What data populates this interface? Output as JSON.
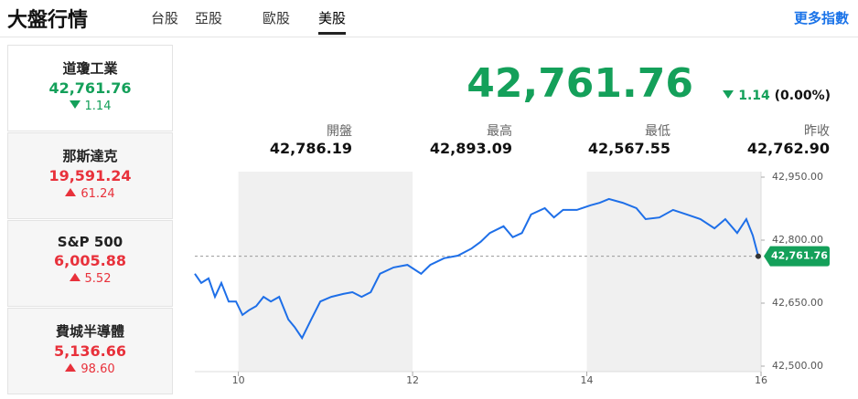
{
  "header": {
    "title": "大盤行情",
    "tabs": [
      "台股",
      "亞股",
      "歐股",
      "美股"
    ],
    "active_tab": 3,
    "more_link": "更多指數"
  },
  "indices": [
    {
      "name": "道瓊工業",
      "value": "42,761.76",
      "change": "1.14",
      "direction": "down"
    },
    {
      "name": "那斯達克",
      "value": "19,591.24",
      "change": "61.24",
      "direction": "up"
    },
    {
      "name": "S&P 500",
      "value": "6,005.88",
      "change": "5.52",
      "direction": "up"
    },
    {
      "name": "費城半導體",
      "value": "5,136.66",
      "change": "98.60",
      "direction": "up"
    }
  ],
  "selected_index": 0,
  "quote": {
    "value": "42,761.76",
    "change": "1.14",
    "change_percent": "(0.00%)",
    "direction": "down"
  },
  "stats": [
    {
      "label": "開盤",
      "value": "42,786.19"
    },
    {
      "label": "最高",
      "value": "42,893.09"
    },
    {
      "label": "最低",
      "value": "42,567.55"
    },
    {
      "label": "昨收",
      "value": "42,762.90"
    }
  ],
  "chart_data": {
    "type": "line",
    "x": [
      9.5,
      9.574,
      9.658,
      9.731,
      9.805,
      9.889,
      9.973,
      10.047,
      10.121,
      10.205,
      10.289,
      10.373,
      10.468,
      10.573,
      10.646,
      10.731,
      10.836,
      10.941,
      11.067,
      11.204,
      11.309,
      11.414,
      11.519,
      11.625,
      11.782,
      11.94,
      12.098,
      12.203,
      12.361,
      12.519,
      12.676,
      12.781,
      12.887,
      13.044,
      13.15,
      13.255,
      13.36,
      13.518,
      13.623,
      13.728,
      13.886,
      14.044,
      14.149,
      14.254,
      14.412,
      14.569,
      14.675,
      14.832,
      14.99,
      15.148,
      15.305,
      15.466,
      15.589,
      15.726,
      15.831,
      15.905,
      15.968
    ],
    "series": [
      {
        "color": "#1e6fe8",
        "values": [
          42720,
          42698,
          42709,
          42665,
          42698,
          42654,
          42654,
          42622,
          42633,
          42643,
          42665,
          42654,
          42665,
          42611,
          42593,
          42567,
          42611,
          42654,
          42665,
          42672,
          42676,
          42665,
          42676,
          42720,
          42735,
          42741,
          42720,
          42741,
          42757,
          42763,
          42780,
          42796,
          42817,
          42833,
          42807,
          42817,
          42861,
          42876,
          42854,
          42872,
          42872,
          42883,
          42889,
          42898,
          42889,
          42876,
          42850,
          42854,
          42872,
          42861,
          42850,
          42828,
          42850,
          42817,
          42850,
          42811,
          42761.76
        ]
      }
    ],
    "xlim": [
      9.5,
      16
    ],
    "xticks": [
      10,
      12,
      14,
      16
    ],
    "ylim": [
      42500,
      42950
    ],
    "yticks": [
      {
        "value": 42500,
        "label": "42,500.00"
      },
      {
        "value": 42650,
        "label": "42,650.00"
      },
      {
        "value": 42800,
        "label": "42,800.00"
      },
      {
        "value": 42950,
        "label": "42,950.00"
      }
    ],
    "last": {
      "value": 42761.76,
      "label": "42,761.76"
    },
    "last_color": "#14a05a"
  }
}
